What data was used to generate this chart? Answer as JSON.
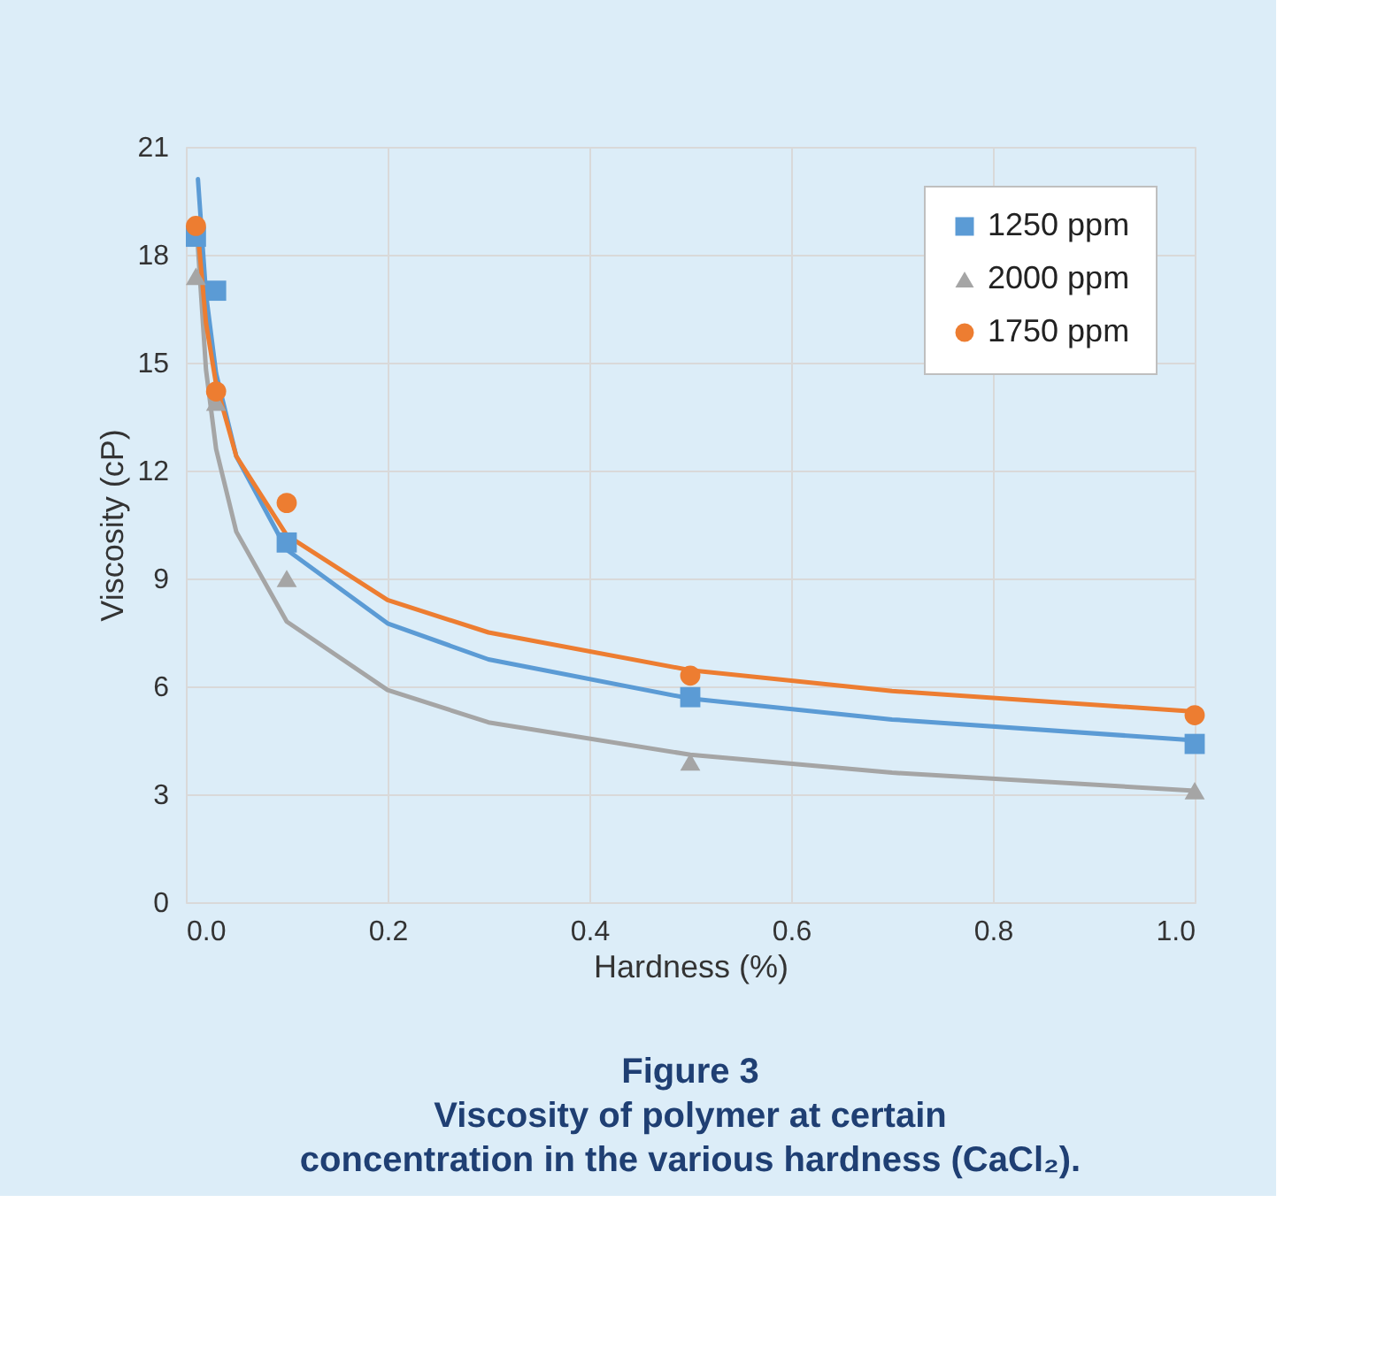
{
  "chart_data": {
    "type": "scatter",
    "title": "Figure 3",
    "subtitle": "Viscosity of polymer at certain\nconcentration in the various hardness (CaCl₂).",
    "xlabel": "Hardness (%)",
    "ylabel": "Viscosity (cP)",
    "xlim": [
      0.0,
      1.0
    ],
    "xticks": [
      {
        "value": 0,
        "label": "0.0"
      },
      0.2,
      0.4,
      0.6,
      0.8,
      {
        "value": 1,
        "label": "1.0"
      }
    ],
    "ylim": [
      0,
      21
    ],
    "yticks": [
      0,
      3,
      6,
      9,
      12,
      15,
      18,
      21
    ],
    "grid": true,
    "legend": "top right",
    "series": [
      {
        "name": "1250 ppm",
        "marker": "square",
        "color": "#5b9bd5",
        "x": [
          0.01,
          0.03,
          0.1,
          0.5,
          1.0
        ],
        "values": [
          18.5,
          17.0,
          10.0,
          5.7,
          4.4
        ]
      },
      {
        "name": "2000 ppm",
        "marker": "triangle",
        "color": "#a5a5a5",
        "x": [
          0.01,
          0.03,
          0.1,
          0.5,
          1.0
        ],
        "values": [
          17.4,
          13.9,
          9.0,
          3.9,
          3.1
        ]
      },
      {
        "name": "1750 ppm",
        "marker": "circle",
        "color": "#ed7d31",
        "x": [
          0.01,
          0.03,
          0.1,
          0.5,
          1.0
        ],
        "values": [
          18.8,
          14.2,
          11.1,
          6.3,
          5.2
        ]
      },
      {
        "type": "line",
        "color": "#5b9bd5",
        "x": [
          0.012,
          0.02,
          0.03,
          0.05,
          0.1,
          0.2,
          0.3,
          0.5,
          0.7,
          1.0
        ],
        "values": [
          20.1,
          16.9,
          14.7,
          12.4,
          9.8,
          7.75,
          6.75,
          5.66,
          5.08,
          4.5
        ]
      },
      {
        "type": "line",
        "color": "#a5a5a5",
        "x": [
          0.012,
          0.02,
          0.03,
          0.05,
          0.1,
          0.2,
          0.3,
          0.5,
          0.7,
          1.0
        ],
        "values": [
          18.2,
          14.8,
          12.6,
          10.3,
          7.8,
          5.9,
          5.0,
          4.1,
          3.6,
          3.1
        ]
      },
      {
        "type": "line",
        "color": "#ed7d31",
        "x": [
          0.012,
          0.02,
          0.03,
          0.05,
          0.1,
          0.2,
          0.3,
          0.5,
          0.7,
          1.0
        ],
        "values": [
          18.6,
          16.1,
          14.4,
          12.4,
          10.2,
          8.4,
          7.5,
          6.45,
          5.87,
          5.3
        ]
      }
    ]
  }
}
